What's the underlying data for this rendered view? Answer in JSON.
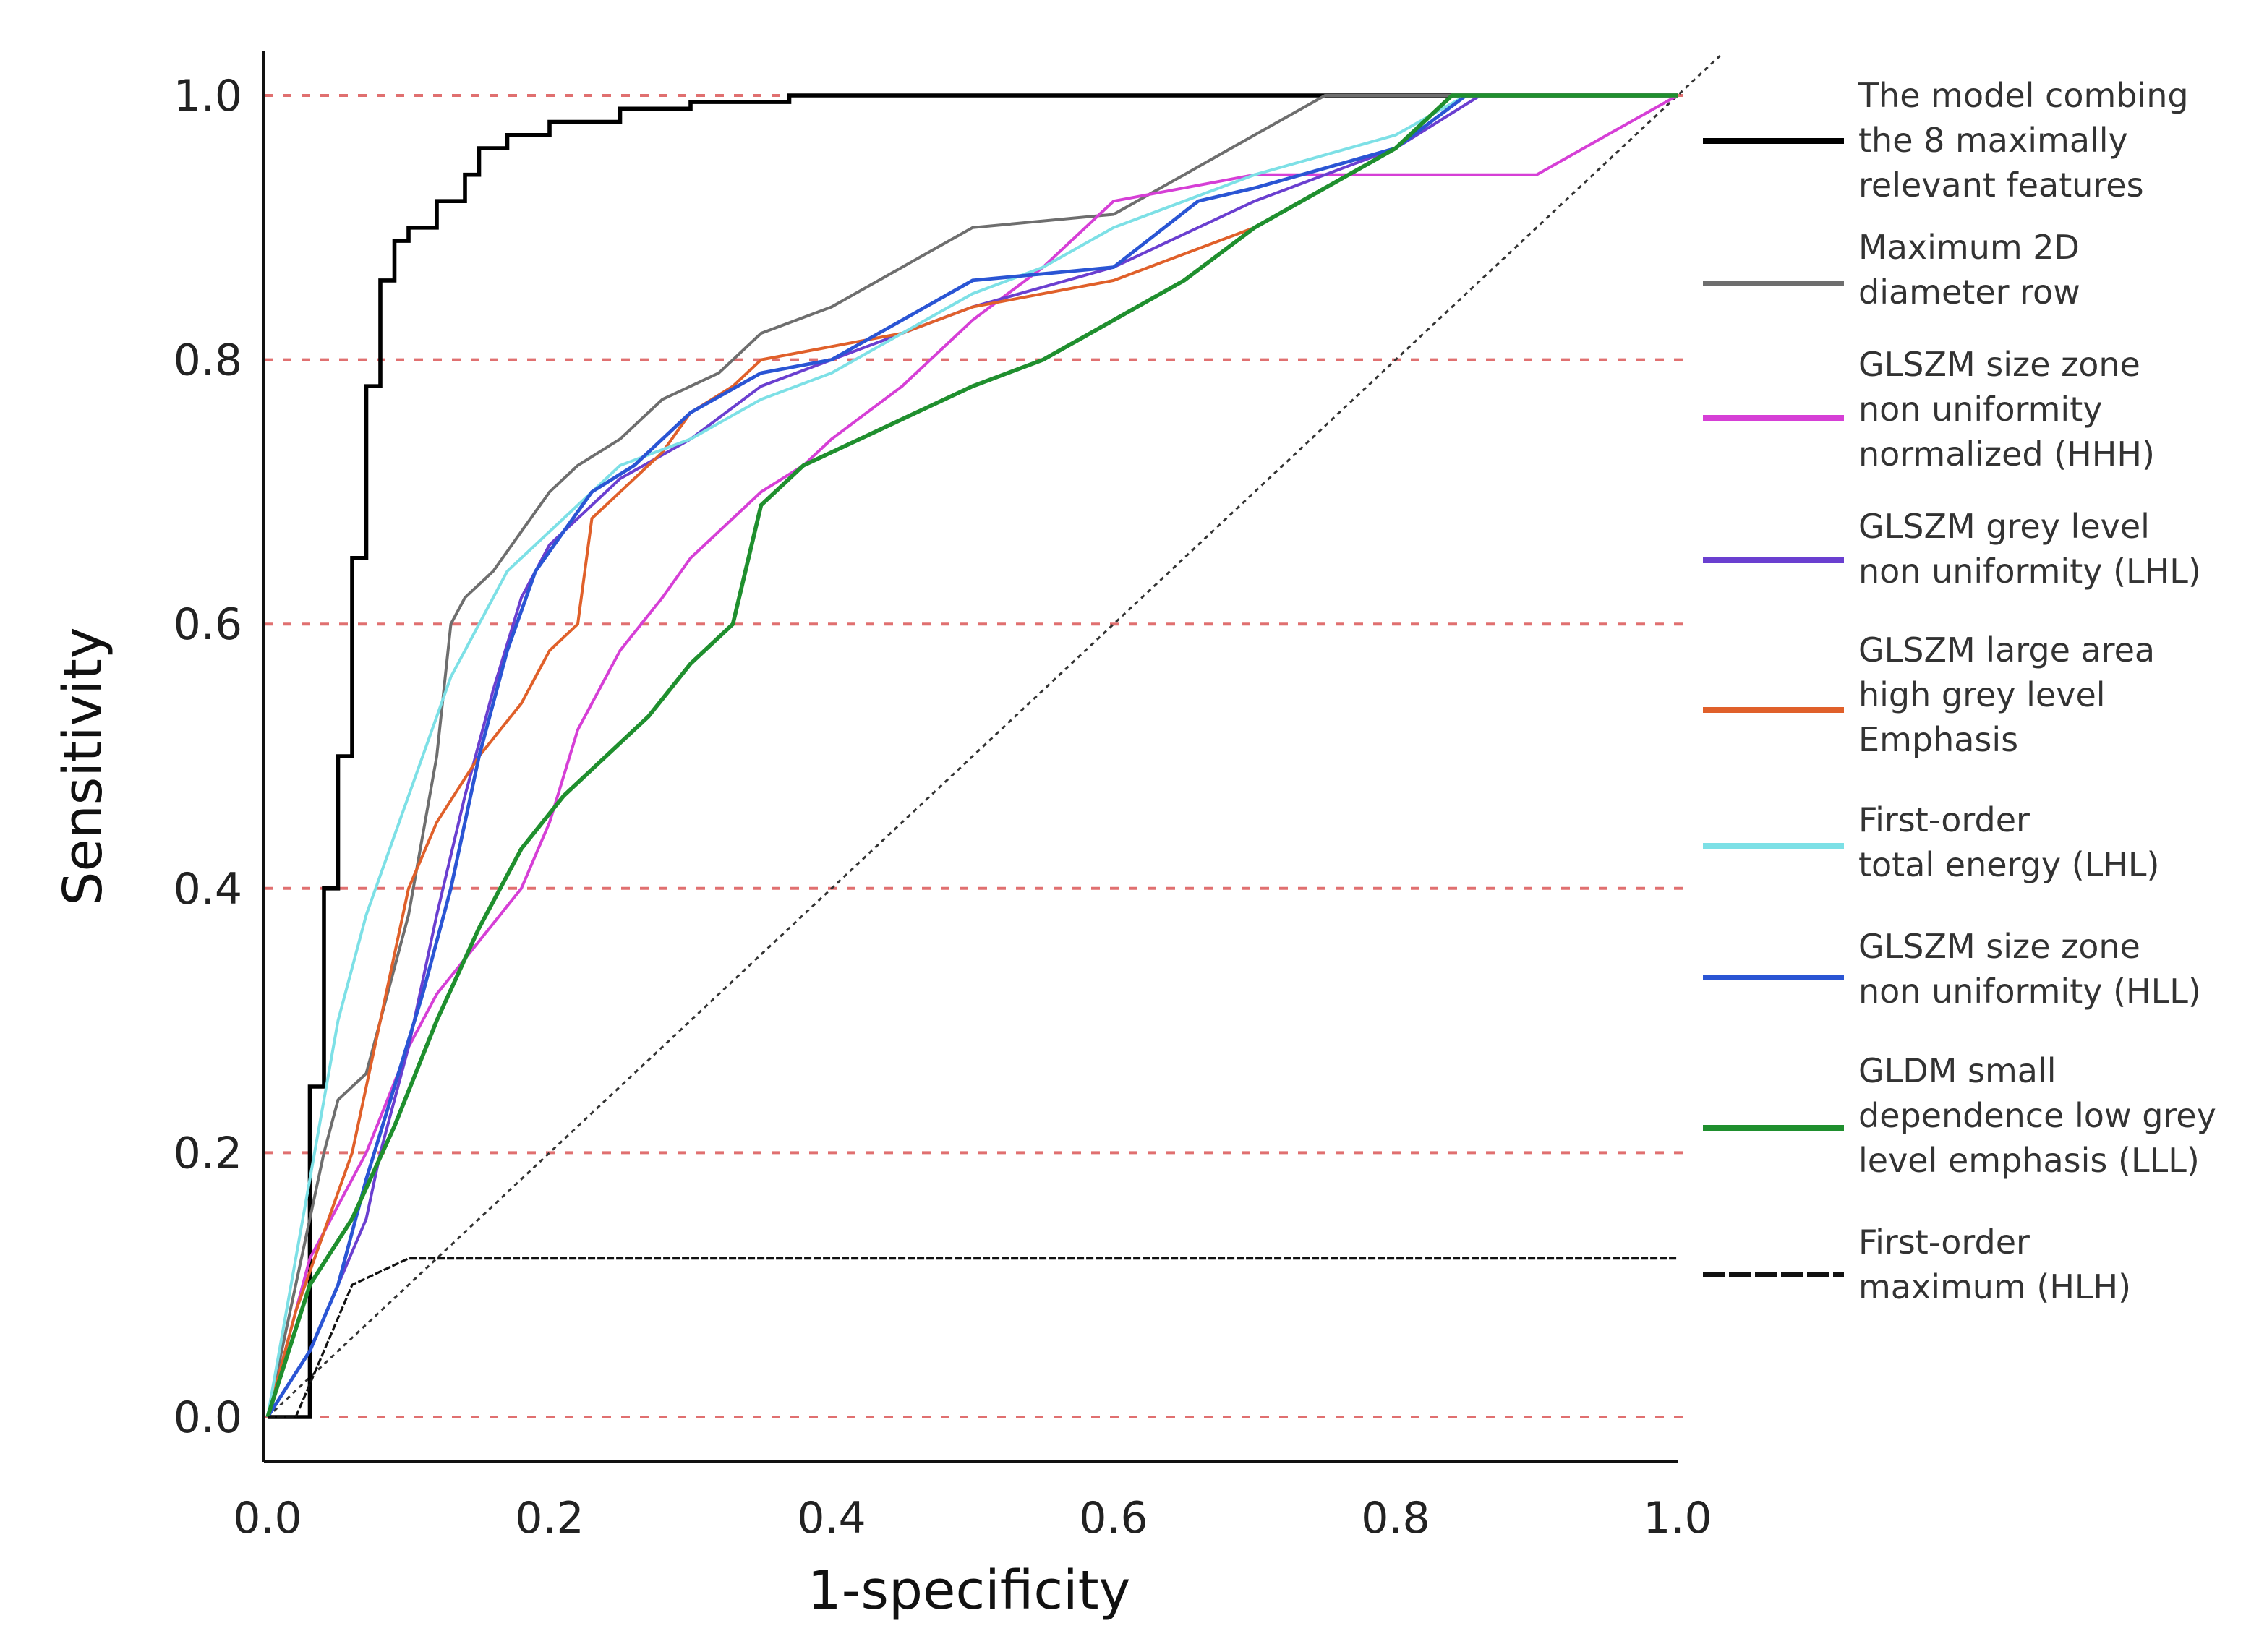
{
  "chart_data": {
    "type": "line",
    "title": "",
    "xlabel": "1-specificity",
    "ylabel": "Sensitivity",
    "xlim": [
      0.0,
      1.0
    ],
    "ylim": [
      0.0,
      1.0
    ],
    "x_ticks": [
      "0.0",
      "0.2",
      "0.4",
      "0.6",
      "0.8",
      "1.0"
    ],
    "y_ticks": [
      "0.0",
      "0.2",
      "0.4",
      "0.6",
      "0.8",
      "1.0"
    ],
    "grid": "horizontal dashed red lines at each y tick",
    "reference_line": "diagonal dashed line from (0,0) to (1,1)",
    "legend_position": "right",
    "series": [
      {
        "name": "The model combing the 8 maximally relevant features",
        "legend_lines": [
          "The model combing",
          "the 8 maximally",
          "relevant features"
        ],
        "color": "#000000",
        "width": 3.5,
        "x": [
          0.0,
          0.03,
          0.03,
          0.04,
          0.04,
          0.05,
          0.05,
          0.06,
          0.06,
          0.07,
          0.07,
          0.08,
          0.08,
          0.09,
          0.09,
          0.1,
          0.1,
          0.12,
          0.12,
          0.14,
          0.14,
          0.15,
          0.15,
          0.17,
          0.17,
          0.2,
          0.2,
          0.25,
          0.25,
          0.3,
          0.3,
          0.37,
          0.37,
          1.0
        ],
        "y": [
          0.0,
          0.0,
          0.25,
          0.25,
          0.4,
          0.4,
          0.5,
          0.5,
          0.65,
          0.65,
          0.78,
          0.78,
          0.86,
          0.86,
          0.89,
          0.89,
          0.9,
          0.9,
          0.92,
          0.92,
          0.94,
          0.94,
          0.96,
          0.96,
          0.97,
          0.97,
          0.98,
          0.98,
          0.99,
          0.99,
          0.995,
          0.995,
          1.0,
          1.0
        ]
      },
      {
        "name": "Maximum 2D diameter row",
        "legend_lines": [
          "Maximum 2D",
          "diameter row"
        ],
        "color": "#6e6e6e",
        "width": 2.5,
        "x": [
          0.0,
          0.04,
          0.05,
          0.07,
          0.08,
          0.1,
          0.12,
          0.13,
          0.14,
          0.16,
          0.18,
          0.2,
          0.22,
          0.25,
          0.28,
          0.32,
          0.35,
          0.4,
          0.45,
          0.5,
          0.6,
          0.65,
          0.7,
          0.75,
          1.0
        ],
        "y": [
          0.0,
          0.2,
          0.24,
          0.26,
          0.3,
          0.38,
          0.5,
          0.6,
          0.62,
          0.64,
          0.67,
          0.7,
          0.72,
          0.74,
          0.77,
          0.79,
          0.82,
          0.84,
          0.87,
          0.9,
          0.91,
          0.94,
          0.97,
          1.0,
          1.0
        ]
      },
      {
        "name": "GLSZM size zone non uniformity normalized (HHH)",
        "legend_lines": [
          "GLSZM size zone",
          "non uniformity",
          "normalized (HHH)"
        ],
        "color": "#d63fd6",
        "width": 2.5,
        "x": [
          0.0,
          0.03,
          0.05,
          0.07,
          0.1,
          0.12,
          0.15,
          0.18,
          0.2,
          0.22,
          0.25,
          0.28,
          0.3,
          0.33,
          0.35,
          0.38,
          0.4,
          0.45,
          0.5,
          0.55,
          0.6,
          0.7,
          0.9,
          0.95,
          1.0
        ],
        "y": [
          0.0,
          0.12,
          0.16,
          0.2,
          0.28,
          0.32,
          0.36,
          0.4,
          0.45,
          0.52,
          0.58,
          0.62,
          0.65,
          0.68,
          0.7,
          0.72,
          0.74,
          0.78,
          0.83,
          0.87,
          0.92,
          0.94,
          0.94,
          0.97,
          1.0
        ]
      },
      {
        "name": "GLSZM grey level non uniformity (LHL)",
        "legend_lines": [
          "GLSZM grey level",
          "non uniformity (LHL)"
        ],
        "color": "#6a3fd0",
        "width": 2.5,
        "x": [
          0.0,
          0.03,
          0.05,
          0.07,
          0.08,
          0.1,
          0.12,
          0.14,
          0.16,
          0.18,
          0.2,
          0.22,
          0.25,
          0.3,
          0.35,
          0.4,
          0.5,
          0.6,
          0.7,
          0.8,
          0.86,
          1.0
        ],
        "y": [
          0.0,
          0.05,
          0.1,
          0.15,
          0.2,
          0.28,
          0.38,
          0.47,
          0.55,
          0.62,
          0.66,
          0.68,
          0.71,
          0.74,
          0.78,
          0.8,
          0.84,
          0.87,
          0.92,
          0.96,
          1.0,
          1.0
        ]
      },
      {
        "name": "GLSZM large area high grey level Emphasis",
        "legend_lines": [
          "GLSZM large area",
          "high grey level",
          "Emphasis"
        ],
        "color": "#e0602a",
        "width": 2.5,
        "x": [
          0.0,
          0.02,
          0.04,
          0.06,
          0.08,
          0.1,
          0.12,
          0.15,
          0.18,
          0.2,
          0.22,
          0.23,
          0.25,
          0.28,
          0.3,
          0.33,
          0.35,
          0.4,
          0.45,
          0.5,
          0.6,
          0.7,
          0.8,
          0.85,
          1.0
        ],
        "y": [
          0.0,
          0.08,
          0.14,
          0.2,
          0.3,
          0.4,
          0.45,
          0.5,
          0.54,
          0.58,
          0.6,
          0.68,
          0.7,
          0.73,
          0.76,
          0.78,
          0.8,
          0.81,
          0.82,
          0.84,
          0.86,
          0.9,
          0.96,
          1.0,
          1.0
        ]
      },
      {
        "name": "First-order total energy (LHL)",
        "legend_lines": [
          "First-order",
          "total energy (LHL)"
        ],
        "color": "#7de0e6",
        "width": 2.5,
        "x": [
          0.0,
          0.03,
          0.05,
          0.07,
          0.09,
          0.11,
          0.13,
          0.15,
          0.17,
          0.2,
          0.22,
          0.25,
          0.3,
          0.35,
          0.4,
          0.45,
          0.5,
          0.55,
          0.6,
          0.7,
          0.8,
          0.85,
          1.0
        ],
        "y": [
          0.0,
          0.18,
          0.3,
          0.38,
          0.44,
          0.5,
          0.56,
          0.6,
          0.64,
          0.67,
          0.69,
          0.72,
          0.74,
          0.77,
          0.79,
          0.82,
          0.85,
          0.87,
          0.9,
          0.94,
          0.97,
          1.0,
          1.0
        ]
      },
      {
        "name": "GLSZM size zone non uniformity (HLL)",
        "legend_lines": [
          "GLSZM size zone",
          "non uniformity (HLL)"
        ],
        "color": "#2a55d4",
        "width": 3,
        "x": [
          0.0,
          0.03,
          0.05,
          0.07,
          0.09,
          0.11,
          0.13,
          0.15,
          0.17,
          0.19,
          0.21,
          0.23,
          0.26,
          0.3,
          0.35,
          0.4,
          0.45,
          0.5,
          0.6,
          0.66,
          0.7,
          0.8,
          0.85,
          1.0
        ],
        "y": [
          0.0,
          0.05,
          0.1,
          0.18,
          0.25,
          0.32,
          0.4,
          0.5,
          0.58,
          0.64,
          0.67,
          0.7,
          0.72,
          0.76,
          0.79,
          0.8,
          0.83,
          0.86,
          0.87,
          0.92,
          0.93,
          0.96,
          1.0,
          1.0
        ]
      },
      {
        "name": "GLDM small dependence low grey level emphasis (LLL)",
        "legend_lines": [
          "GLDM small",
          "dependence low grey",
          "level emphasis (LLL)"
        ],
        "color": "#1f8f2e",
        "width": 3.5,
        "x": [
          0.0,
          0.03,
          0.06,
          0.09,
          0.12,
          0.15,
          0.18,
          0.21,
          0.24,
          0.27,
          0.3,
          0.33,
          0.35,
          0.38,
          0.42,
          0.46,
          0.5,
          0.55,
          0.6,
          0.65,
          0.7,
          0.75,
          0.8,
          0.84,
          1.0
        ],
        "y": [
          0.0,
          0.1,
          0.15,
          0.22,
          0.3,
          0.37,
          0.43,
          0.47,
          0.5,
          0.53,
          0.57,
          0.6,
          0.69,
          0.72,
          0.74,
          0.76,
          0.78,
          0.8,
          0.83,
          0.86,
          0.9,
          0.93,
          0.96,
          1.0,
          1.0
        ]
      },
      {
        "name": "First-order maximum (HLH)",
        "legend_lines": [
          "First-order",
          "maximum (HLH)"
        ],
        "color": "#111111",
        "width": 2,
        "dash": "10,3",
        "x": [
          0.0,
          0.02,
          0.04,
          0.06,
          0.1,
          1.0
        ],
        "y": [
          0.0,
          0.0,
          0.05,
          0.1,
          0.12,
          0.12
        ]
      }
    ]
  }
}
